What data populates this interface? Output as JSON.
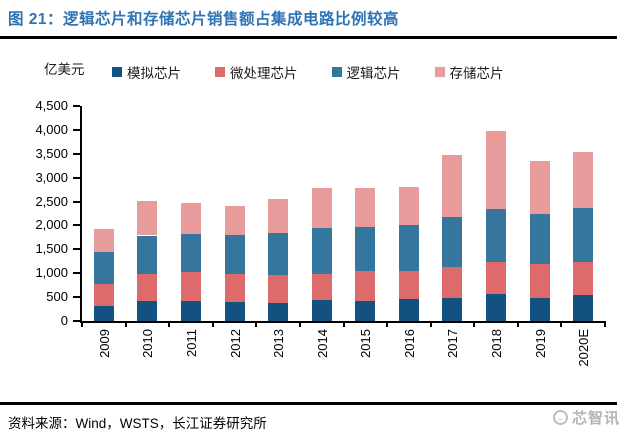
{
  "header": {
    "title": "图 21：逻辑芯片和存储芯片销售额占集成电路比例较高",
    "title_color": "#2E74B5"
  },
  "chart_data": {
    "type": "bar",
    "stacked": true,
    "title": "逻辑芯片和存储芯片销售额占集成电路比例较高",
    "unit_label": "亿美元",
    "categories": [
      "2009",
      "2010",
      "2011",
      "2012",
      "2013",
      "2014",
      "2015",
      "2016",
      "2017",
      "2018",
      "2019",
      "2020E"
    ],
    "series": [
      {
        "name": "模拟芯片",
        "color": "#135180",
        "values": [
          310,
          410,
          420,
          390,
          380,
          430,
          420,
          460,
          490,
          560,
          490,
          545
        ]
      },
      {
        "name": "微处理芯片",
        "color": "#DD6B6B",
        "values": [
          455,
          575,
          610,
          585,
          580,
          560,
          630,
          590,
          650,
          685,
          705,
          700
        ]
      },
      {
        "name": "逻辑芯片",
        "color": "#35769F",
        "values": [
          675,
          805,
          795,
          815,
          885,
          965,
          925,
          950,
          1045,
          1095,
          1045,
          1115
        ]
      },
      {
        "name": "存储芯片",
        "color": "#E89B9B",
        "values": [
          480,
          720,
          655,
          615,
          710,
          835,
          810,
          815,
          1290,
          1645,
          1110,
          1180
        ]
      }
    ],
    "ylim": [
      0,
      4500
    ],
    "ytick_step": 500,
    "xlabel": "",
    "ylabel": "亿美元",
    "legend_position": "top",
    "grid": false,
    "axis_color": "#000000"
  },
  "footer": {
    "source": "资料来源：Wind，WSTS，长江证券研究所",
    "logo_text": "芯智讯"
  }
}
